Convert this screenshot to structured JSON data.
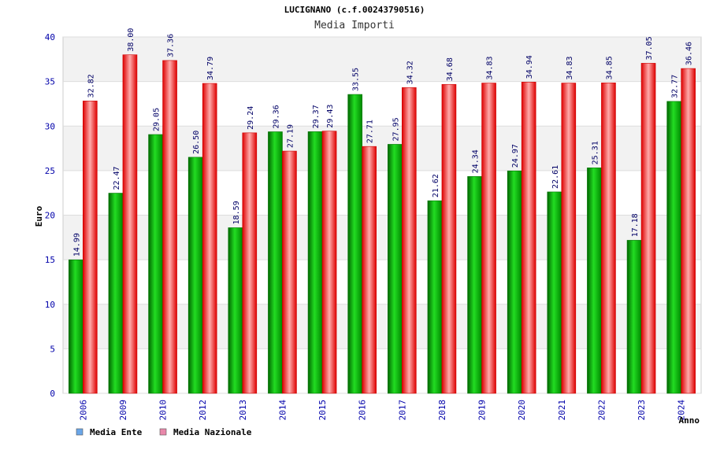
{
  "chart_data": {
    "type": "bar",
    "title": "LUCIGNANO (c.f.00243790516)",
    "subtitle": "Media Importi",
    "xlabel": "Anno",
    "ylabel": "Euro",
    "ylim": [
      0,
      40
    ],
    "yticks": [
      "0",
      "5",
      "10",
      "15",
      "20",
      "25",
      "30",
      "35",
      "40"
    ],
    "grid": true,
    "legend_position": "bottom-left",
    "categories": [
      "2006",
      "2009",
      "2010",
      "2012",
      "2013",
      "2014",
      "2015",
      "2016",
      "2017",
      "2018",
      "2019",
      "2020",
      "2021",
      "2022",
      "2023",
      "2024"
    ],
    "series": [
      {
        "name": "Media Ente",
        "color": "#00aa00",
        "legend_color": "#6aa6e8",
        "values": [
          14.99,
          22.47,
          29.05,
          26.5,
          18.59,
          29.36,
          29.37,
          33.55,
          27.95,
          21.62,
          24.34,
          24.97,
          22.61,
          25.31,
          17.18,
          32.77
        ],
        "labels": [
          "14.99",
          "22.47",
          "29.05",
          "26.50",
          "18.59",
          "29.36",
          "29.37",
          "33.55",
          "27.95",
          "21.62",
          "24.34",
          "24.97",
          "22.61",
          "25.31",
          "17.18",
          "32.77"
        ]
      },
      {
        "name": "Media Nazionale",
        "color": "#ee2222",
        "legend_color": "#e888aa",
        "values": [
          32.82,
          38.0,
          37.36,
          34.79,
          29.24,
          27.19,
          29.43,
          27.71,
          34.32,
          34.68,
          34.83,
          34.94,
          34.83,
          34.85,
          37.05,
          36.46
        ],
        "labels": [
          "32.82",
          "38.00",
          "37.36",
          "34.79",
          "29.24",
          "27.19",
          "29.43",
          "27.71",
          "34.32",
          "34.68",
          "34.83",
          "34.94",
          "34.83",
          "34.85",
          "37.05",
          "36.46"
        ]
      }
    ]
  }
}
